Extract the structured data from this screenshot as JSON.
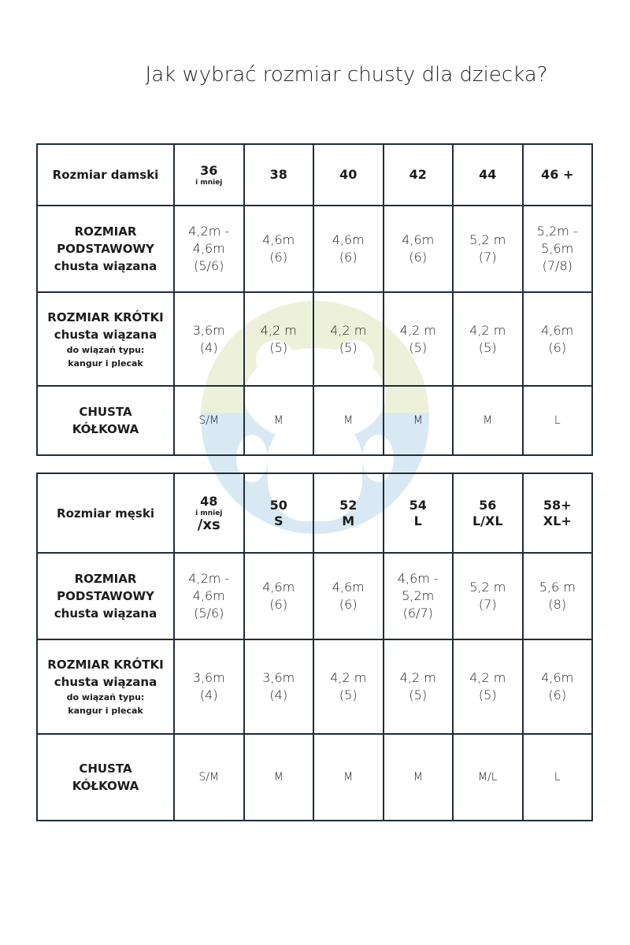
{
  "title": "Jak wybrać rozmiar chusty dla dziecka?",
  "watermark": {
    "icon": "frog-logo-icon",
    "colors": {
      "top": "#eef1d9",
      "bottom": "#d8e9f4"
    }
  },
  "tables": [
    {
      "header_label": "Rozmiar damski",
      "columns": [
        {
          "main": "36",
          "sub": "i mniej"
        },
        {
          "main": "38"
        },
        {
          "main": "40"
        },
        {
          "main": "42"
        },
        {
          "main": "44"
        },
        {
          "main": "46 +"
        }
      ],
      "rows": [
        {
          "label": [
            "ROZMIAR",
            "PODSTAWOWY",
            "chusta wiązana"
          ],
          "small": [],
          "cells": [
            [
              "4,2m -",
              "4,6m",
              "(5/6)"
            ],
            [
              "4,6m",
              "(6)"
            ],
            [
              "4,6m",
              "(6)"
            ],
            [
              "4,6m",
              "(6)"
            ],
            [
              "5,2 m",
              "(7)"
            ],
            [
              "5,2m -",
              "5,6m",
              "(7/8)"
            ]
          ]
        },
        {
          "label": [
            "ROZMIAR KRÓTKI",
            "chusta wiązana"
          ],
          "small": [
            "do wiązań typu:",
            "kangur i plecak"
          ],
          "cells": [
            [
              "3,6m",
              "(4)"
            ],
            [
              "4,2 m",
              "(5)"
            ],
            [
              "4,2 m",
              "(5)"
            ],
            [
              "4,2 m",
              "(5)"
            ],
            [
              "4,2 m",
              "(5)"
            ],
            [
              "4,6m",
              "(6)"
            ]
          ]
        },
        {
          "label": [
            "CHUSTA",
            "KÓŁKOWA"
          ],
          "small": [],
          "ring": true,
          "cells": [
            [
              "S/M"
            ],
            [
              "M"
            ],
            [
              "M"
            ],
            [
              "M"
            ],
            [
              "M"
            ],
            [
              "L"
            ]
          ]
        }
      ]
    },
    {
      "header_label": "Rozmiar męski",
      "columns": [
        {
          "main": "48",
          "sub": "i mniej",
          "sub2": "/xs"
        },
        {
          "main": "50",
          "sub2": "S"
        },
        {
          "main": "52",
          "sub2": "M"
        },
        {
          "main": "54",
          "sub2": "L"
        },
        {
          "main": "56",
          "sub2": "L/XL"
        },
        {
          "main": "58+",
          "sub2": "XL+"
        }
      ],
      "rows": [
        {
          "label": [
            "ROZMIAR",
            "PODSTAWOWY",
            "chusta wiązana"
          ],
          "small": [],
          "cells": [
            [
              "4,2m -",
              "4,6m",
              "(5/6)"
            ],
            [
              "4,6m",
              "(6)"
            ],
            [
              "4,6m",
              "(6)"
            ],
            [
              "4,6m -",
              "5,2m",
              "(6/7)"
            ],
            [
              "5,2 m",
              "(7)"
            ],
            [
              "5,6 m",
              "(8)"
            ]
          ]
        },
        {
          "label": [
            "ROZMIAR KRÓTKI",
            "chusta wiązana"
          ],
          "small": [
            "do wiązań typu:",
            "kangur i plecak"
          ],
          "cells": [
            [
              "3,6m",
              "(4)"
            ],
            [
              "3,6m",
              "(4)"
            ],
            [
              "4,2 m",
              "(5)"
            ],
            [
              "4,2 m",
              "(5)"
            ],
            [
              "4,2 m",
              "(5)"
            ],
            [
              "4,6m",
              "(6)"
            ]
          ]
        },
        {
          "label": [
            "CHUSTA",
            "KÓŁKOWA"
          ],
          "small": [],
          "ring": true,
          "cells": [
            [
              "S/M"
            ],
            [
              "M"
            ],
            [
              "M"
            ],
            [
              "M"
            ],
            [
              "M/L"
            ],
            [
              "L"
            ]
          ]
        }
      ]
    }
  ]
}
